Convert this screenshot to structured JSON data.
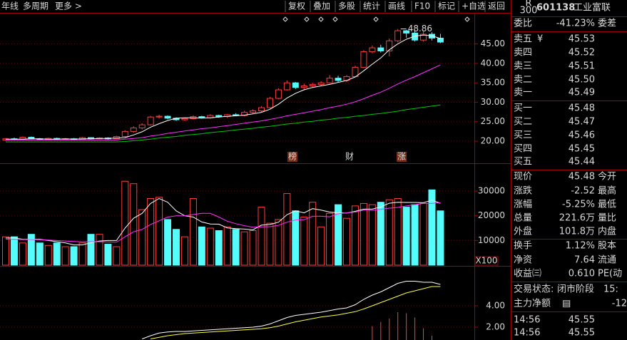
{
  "toolbar": {
    "left": [
      "年线",
      "多周期",
      "更多 >"
    ],
    "buttons": [
      "复权",
      "叠加",
      "多股",
      "统计",
      "画线",
      "F10",
      "标记",
      "+自选",
      "返回"
    ]
  },
  "chart_data": [
    {
      "type": "candlestick",
      "open": [
        20.3,
        20.6,
        20.5,
        21.0,
        20.6,
        20.4,
        20.7,
        20.5,
        20.6,
        20.4,
        20.9,
        20.6,
        20.8,
        20.6,
        21.2,
        22.5,
        23.4,
        24.2,
        26.2,
        26.4,
        25.9,
        25.5,
        25.8,
        26.3,
        26.0,
        26.6,
        26.3,
        26.8,
        26.6,
        27.4,
        27.8,
        28.6,
        31.0,
        33.2,
        35.0,
        33.8,
        34.2,
        34.6,
        35.0,
        36.2,
        35.6,
        36.6,
        39.0,
        43.0,
        44.0,
        43.2,
        45.8,
        48.4,
        47.8,
        46.0,
        47.5,
        46.5
      ],
      "close": [
        20.6,
        20.5,
        21.0,
        20.6,
        20.4,
        20.7,
        20.5,
        20.6,
        20.4,
        20.9,
        20.6,
        20.8,
        20.6,
        21.2,
        22.5,
        23.4,
        24.2,
        26.2,
        26.4,
        25.9,
        25.5,
        25.8,
        26.3,
        26.0,
        26.6,
        26.3,
        26.8,
        26.6,
        27.4,
        27.8,
        28.6,
        31.0,
        33.2,
        35.0,
        33.8,
        34.2,
        34.6,
        35.0,
        36.2,
        35.6,
        36.6,
        39.0,
        43.0,
        44.0,
        43.2,
        45.8,
        48.4,
        47.8,
        46.0,
        47.5,
        46.5,
        45.48
      ],
      "high": [
        20.8,
        20.9,
        21.2,
        21.2,
        20.8,
        20.9,
        20.9,
        20.8,
        20.8,
        21.1,
        21.0,
        21.0,
        21.0,
        21.4,
        22.8,
        23.8,
        24.6,
        26.5,
        26.8,
        26.6,
        26.1,
        26.0,
        26.6,
        26.5,
        26.9,
        26.8,
        27.0,
        27.2,
        27.8,
        28.2,
        29.0,
        31.4,
        33.6,
        35.6,
        35.2,
        34.8,
        35.0,
        35.4,
        37.0,
        36.8,
        37.0,
        39.4,
        43.4,
        44.6,
        44.8,
        46.4,
        48.86,
        48.6,
        48.4,
        48.2,
        48.0,
        47.6
      ],
      "low": [
        20.1,
        20.2,
        20.4,
        20.5,
        20.2,
        20.3,
        20.3,
        20.3,
        20.2,
        20.3,
        20.5,
        20.5,
        20.4,
        20.5,
        21.0,
        22.2,
        23.0,
        24.0,
        25.8,
        25.6,
        25.2,
        25.2,
        25.6,
        25.8,
        25.8,
        26.0,
        26.0,
        26.4,
        26.4,
        27.0,
        27.5,
        28.4,
        30.8,
        33.0,
        33.4,
        33.2,
        33.8,
        34.2,
        34.8,
        35.2,
        35.2,
        36.4,
        38.8,
        42.6,
        42.8,
        41.8,
        45.4,
        46.6,
        45.6,
        45.6,
        45.9,
        45.2
      ],
      "up_color": "#ff3c3c",
      "down_color": "#54fcfc",
      "series": [
        {
          "color": "#ffffff",
          "values": [
            20.5,
            20.5,
            20.5,
            20.6,
            20.6,
            20.5,
            20.5,
            20.6,
            20.5,
            20.6,
            20.6,
            20.7,
            20.7,
            20.8,
            20.9,
            21.6,
            22.4,
            23.6,
            24.5,
            25.3,
            25.9,
            26.0,
            26.0,
            25.9,
            26.0,
            26.2,
            26.4,
            26.5,
            26.7,
            27.0,
            27.4,
            28.2,
            29.5,
            31.1,
            32.3,
            33.2,
            33.8,
            34.2,
            34.6,
            35.1,
            35.6,
            36.5,
            38.1,
            39.8,
            41.4,
            43.5,
            45.0,
            46.2,
            47.0,
            47.3,
            47.1,
            46.4
          ]
        },
        {
          "color": "#ff30ff",
          "values": [
            20.3,
            20.3,
            20.3,
            20.3,
            20.3,
            20.3,
            20.3,
            20.3,
            20.3,
            20.3,
            20.3,
            20.3,
            20.3,
            20.3,
            20.5,
            20.7,
            20.9,
            21.3,
            21.6,
            22.0,
            22.3,
            22.6,
            22.9,
            23.2,
            23.4,
            23.7,
            24.0,
            24.3,
            24.6,
            24.9,
            25.2,
            25.6,
            26.0,
            26.5,
            26.9,
            27.3,
            27.7,
            28.1,
            28.6,
            29.0,
            29.5,
            30.1,
            30.9,
            31.8,
            32.6,
            33.6,
            34.7,
            35.7,
            36.6,
            37.6,
            38.6,
            39.6
          ]
        },
        {
          "color": "#00c800",
          "values": [
            19.8,
            19.8,
            19.8,
            19.8,
            19.8,
            19.8,
            19.8,
            19.8,
            19.8,
            19.8,
            19.8,
            19.8,
            19.8,
            19.8,
            19.9,
            20.1,
            20.3,
            20.5,
            20.8,
            21.0,
            21.2,
            21.5,
            21.7,
            21.9,
            22.2,
            22.4,
            22.6,
            22.9,
            23.1,
            23.3,
            23.6,
            23.8,
            24.1,
            24.4,
            24.6,
            24.9,
            25.1,
            25.4,
            25.6,
            25.9,
            26.1,
            26.4,
            26.6,
            26.9,
            27.1,
            27.4,
            27.7,
            28.1,
            28.4,
            28.7,
            29.0,
            29.3
          ]
        }
      ],
      "annotation": 48.86,
      "events": [
        "榜",
        "财",
        "涨"
      ],
      "ylim": [
        14.5,
        53
      ],
      "yticks": [
        {
          "value": 20,
          "label": "20.00"
        },
        {
          "value": 25,
          "label": "25.00"
        },
        {
          "value": 30,
          "label": "30.00"
        },
        {
          "value": 35,
          "label": "35.00"
        },
        {
          "value": 40,
          "label": "40.00"
        },
        {
          "value": 45,
          "label": "45.00"
        }
      ],
      "grid": true
    },
    {
      "type": "bar",
      "values": [
        11500,
        11500,
        9000,
        12500,
        9000,
        8000,
        9000,
        7500,
        7500,
        9000,
        12500,
        12500,
        8500,
        7500,
        34000,
        33000,
        22500,
        27000,
        27500,
        18500,
        14500,
        11500,
        27000,
        15500,
        15000,
        14000,
        15500,
        14500,
        13500,
        14000,
        23500,
        17000,
        18500,
        29000,
        22000,
        19500,
        25500,
        15500,
        21000,
        24500,
        19000,
        24000,
        25000,
        24500,
        25500,
        26500,
        27000,
        23500,
        24500,
        25000,
        30500,
        22000
      ],
      "series": [
        {
          "color": "#ffffff",
          "values": [
            11000,
            11000,
            10500,
            10500,
            10500,
            10000,
            9500,
            9000,
            8200,
            8200,
            9100,
            9800,
            10000,
            10000,
            15000,
            19000,
            21000,
            25000,
            27000,
            25500,
            22000,
            20000,
            19500,
            17500,
            16700,
            16600,
            15100,
            14800,
            14600,
            14300,
            16200,
            16500,
            17400,
            20400,
            22000,
            21200,
            22900,
            22300,
            21500,
            21200,
            21100,
            21800,
            22700,
            22700,
            23600,
            25100,
            25500,
            25400,
            25400,
            25300,
            26300,
            25100
          ]
        },
        {
          "color": "#ff30ff",
          "values": [
            10500,
            10500,
            10400,
            10400,
            10300,
            10200,
            10000,
            9800,
            9600,
            9400,
            9500,
            9500,
            9400,
            9300,
            11500,
            13500,
            14500,
            16500,
            18000,
            19500,
            20000,
            20000,
            20500,
            21000,
            21000,
            19500,
            17800,
            16800,
            16000,
            15400,
            15500,
            15600,
            16100,
            17400,
            18300,
            18400,
            19800,
            19800,
            19600,
            20800,
            21200,
            21500,
            22300,
            22200,
            22600,
            23100,
            23400,
            24000,
            24500,
            25000,
            25000,
            25300
          ]
        }
      ],
      "unit": "X100",
      "ylim": [
        0,
        41000
      ],
      "yticks": [
        10000,
        20000,
        30000
      ],
      "grid": true
    },
    {
      "type": "line",
      "series": [
        {
          "color": "#ffffff",
          "values": [
            null,
            null,
            null,
            null,
            null,
            null,
            null,
            null,
            null,
            null,
            null,
            null,
            null,
            null,
            null,
            null,
            0.9,
            1.2,
            1.45,
            1.55,
            1.6,
            1.6,
            1.65,
            1.7,
            1.75,
            1.8,
            1.85,
            1.9,
            1.95,
            2.0,
            2.1,
            2.3,
            2.6,
            2.9,
            3.1,
            3.2,
            3.3,
            3.4,
            3.55,
            3.7,
            3.8,
            4.1,
            4.6,
            5.0,
            5.3,
            5.7,
            6.1,
            6.3,
            6.3,
            6.2,
            6.2,
            6.0
          ]
        },
        {
          "color": "#ffff40",
          "values": [
            null,
            null,
            null,
            null,
            null,
            null,
            null,
            null,
            null,
            null,
            null,
            null,
            null,
            null,
            null,
            null,
            null,
            0.9,
            1.05,
            1.2,
            1.3,
            1.4,
            1.45,
            1.5,
            1.55,
            1.6,
            1.65,
            1.7,
            1.75,
            1.8,
            1.85,
            1.95,
            2.1,
            2.3,
            2.5,
            2.65,
            2.8,
            2.95,
            3.05,
            3.15,
            3.3,
            3.45,
            3.7,
            4.0,
            4.3,
            4.6,
            4.9,
            5.2,
            5.4,
            5.6,
            5.8,
            5.8
          ]
        }
      ],
      "bars": [
        null,
        null,
        null,
        null,
        null,
        null,
        null,
        null,
        null,
        null,
        null,
        null,
        null,
        null,
        null,
        null,
        null,
        null,
        null,
        null,
        null,
        null,
        null,
        null,
        null,
        null,
        null,
        null,
        null,
        null,
        null,
        null,
        null,
        null,
        null,
        null,
        null,
        null,
        null,
        null,
        null,
        null,
        null,
        2.1,
        2.5,
        2.8,
        3.4,
        3.3,
        2.9,
        1.9,
        1.2,
        null
      ],
      "bar_color": "#ff3c3c",
      "ylim": [
        0.8,
        7.6
      ],
      "yticks": [
        {
          "value": 2,
          "label": "2.00"
        },
        {
          "value": 4,
          "label": "4.00"
        }
      ],
      "grid": true
    }
  ],
  "quote_panel": {
    "header": {
      "badge_top": "R",
      "badge_bottom": "300",
      "code": "601138",
      "name": "工业富联"
    },
    "groups": [
      [
        {
          "label": "委比",
          "value": "-41.23%",
          "right": "委差",
          "color": "#00e600"
        }
      ],
      [
        {
          "label": "卖五",
          "mark": "¥",
          "value": "45.53",
          "color": "#00e600"
        },
        {
          "label": "卖四",
          "value": "45.52",
          "color": "#00e600"
        },
        {
          "label": "卖三",
          "value": "45.51",
          "color": "#00e600"
        },
        {
          "label": "卖二",
          "value": "45.50",
          "color": "#00e600"
        },
        {
          "label": "卖一",
          "value": "45.49",
          "color": "#00e600"
        }
      ],
      [
        {
          "label": "买一",
          "value": "45.48",
          "color": "#00e600"
        },
        {
          "label": "买二",
          "value": "45.47",
          "color": "#00e600"
        },
        {
          "label": "买三",
          "value": "45.46",
          "color": "#00e600"
        },
        {
          "label": "买四",
          "value": "45.45",
          "color": "#00e600"
        },
        {
          "label": "买五",
          "value": "45.44",
          "color": "#00e600"
        }
      ],
      [
        {
          "label": "现价",
          "value": "45.48",
          "right": "今开",
          "color": "#00e600"
        },
        {
          "label": "涨跌",
          "value": "-2.52",
          "right": "最高",
          "color": "#00e600"
        },
        {
          "label": "涨幅",
          "value": "-5.25%",
          "right": "最低",
          "color": "#00e600"
        },
        {
          "label": "总量",
          "value": "221.6万",
          "right": "量比",
          "color": "#ffff40"
        },
        {
          "label": "外盘",
          "value": "101.8万",
          "right": "内盘",
          "color": "#ff4040"
        }
      ],
      [
        {
          "label": "换手",
          "value": "1.12%",
          "right": "股本",
          "color": "#e8e8e8"
        },
        {
          "label": "净资",
          "value": "7.64",
          "right": "流通",
          "color": "#e8e8e8"
        },
        {
          "label": "收益㈢",
          "value": "0.610",
          "right": "PE(动",
          "color": "#e8e8e8"
        }
      ],
      [
        {
          "label": "交易状态:",
          "value": "闭市阶段",
          "right": "15:",
          "color": "#e8e8e8"
        },
        {
          "label": "主力净额",
          "mark": "▤",
          "value": "-12",
          "color": "#00e600"
        }
      ],
      [
        {
          "label": "14:56",
          "value": "45.55",
          "color": "#00e600"
        },
        {
          "label": "14:56",
          "value": "45.55",
          "color": "#00e600"
        }
      ]
    ]
  }
}
